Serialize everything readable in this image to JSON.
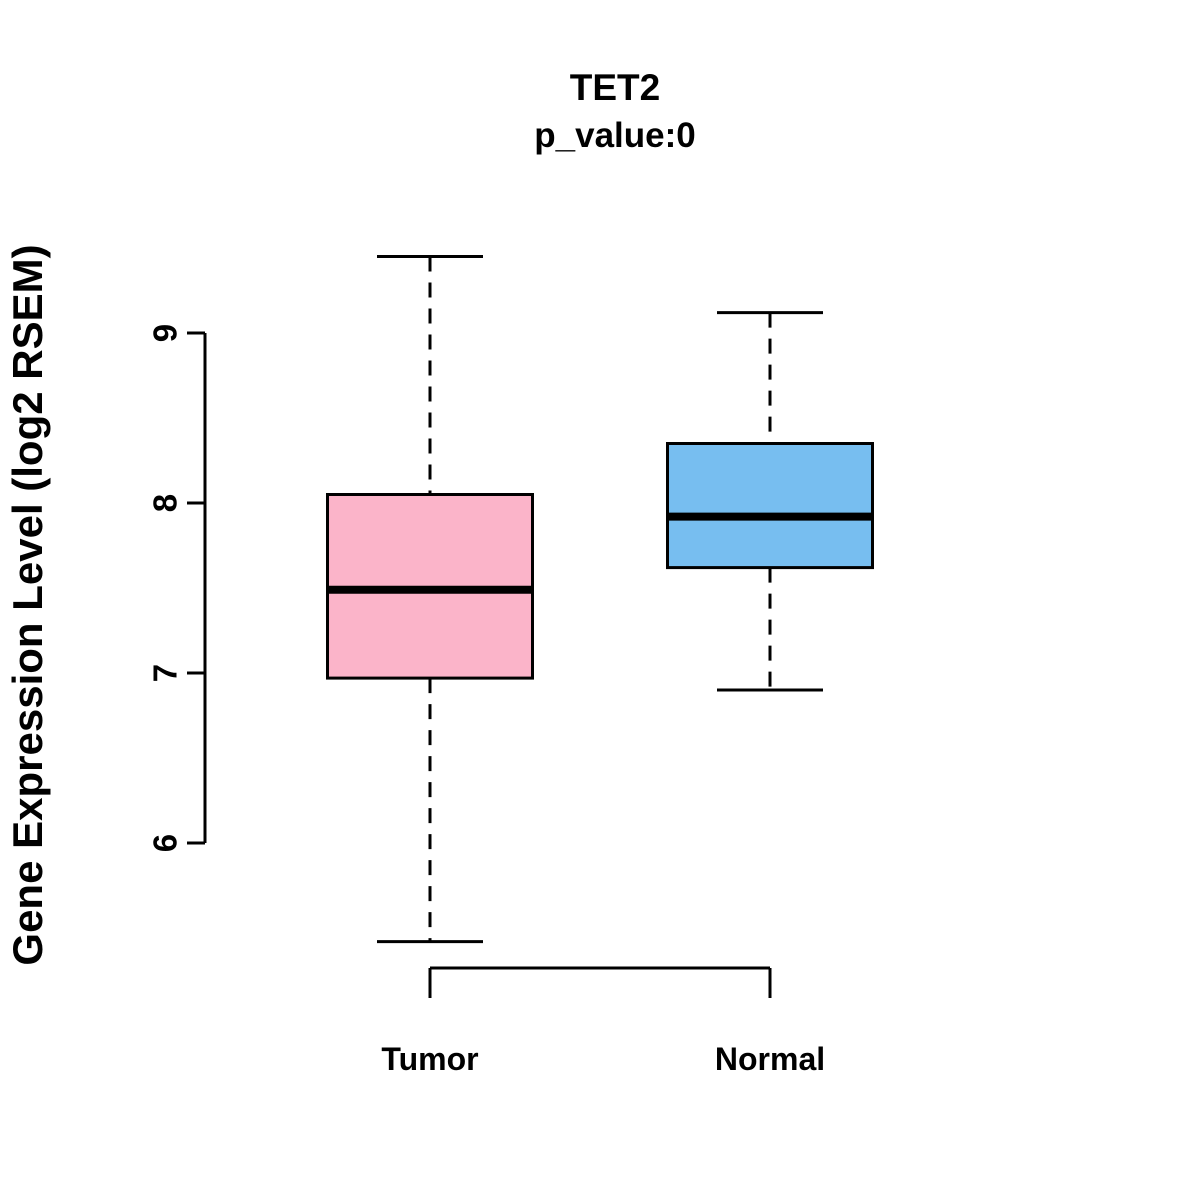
{
  "chart_data": {
    "type": "boxplot",
    "title": "TET2",
    "subtitle": "p_value:0",
    "ylabel": "Gene Expression Level (log2 RSEM)",
    "xlabel": "",
    "ylim": [
      5.3,
      9.6
    ],
    "y_ticks": [
      6,
      7,
      8,
      9
    ],
    "grid": false,
    "legend": "none",
    "groups": [
      {
        "label": "Tumor",
        "fill": "#FBB4C9",
        "lower_whisker": 5.42,
        "q1": 6.97,
        "median": 7.49,
        "q3": 8.05,
        "upper_whisker": 9.45
      },
      {
        "label": "Normal",
        "fill": "#77BEF0",
        "lower_whisker": 6.9,
        "q1": 7.62,
        "median": 7.92,
        "q3": 8.35,
        "upper_whisker": 9.12
      }
    ],
    "colors": {
      "box_stroke": "#000000",
      "median": "#000000",
      "whisker": "#000000",
      "axis": "#000000"
    }
  }
}
